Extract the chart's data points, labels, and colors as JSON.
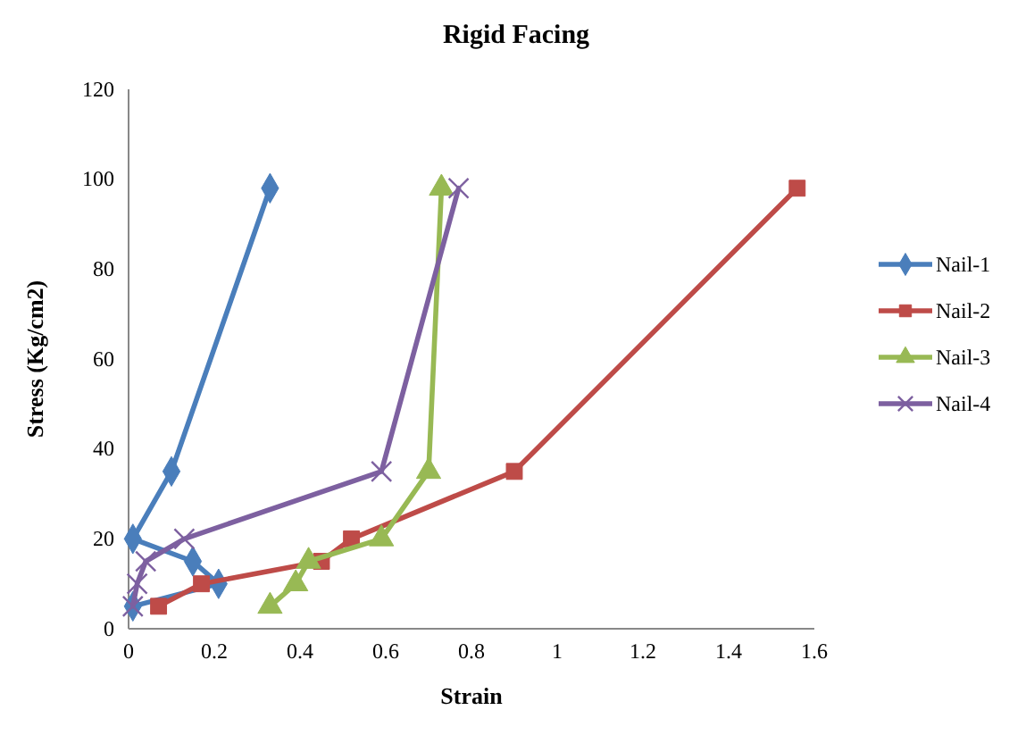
{
  "chart_data": {
    "type": "line",
    "title": "Rigid Facing",
    "xlabel": "Strain",
    "ylabel": "Stress (Kg/cm2)",
    "xlim": [
      0,
      1.6
    ],
    "xticks": [
      0,
      0.2,
      0.4,
      0.6,
      0.8,
      1,
      1.2,
      1.4,
      1.6
    ],
    "ylim": [
      0,
      120
    ],
    "yticks": [
      0,
      20,
      40,
      60,
      80,
      100,
      120
    ],
    "grid": false,
    "legend": "right",
    "series": [
      {
        "name": "Nail-1",
        "color": "#4a7ebb",
        "marker": "diamond",
        "x": [
          0.01,
          0.21,
          0.15,
          0.01,
          0.1,
          0.33
        ],
        "values": [
          5,
          10,
          15,
          20,
          35,
          98
        ]
      },
      {
        "name": "Nail-2",
        "color": "#be4b48",
        "marker": "square",
        "x": [
          0.07,
          0.17,
          0.45,
          0.52,
          0.9,
          1.56
        ],
        "values": [
          5,
          10,
          15,
          20,
          35,
          98
        ]
      },
      {
        "name": "Nail-3",
        "color": "#98b954",
        "marker": "triangle",
        "x": [
          0.33,
          0.39,
          0.42,
          0.59,
          0.7,
          0.73
        ],
        "values": [
          5,
          10,
          15,
          20,
          35,
          98
        ]
      },
      {
        "name": "Nail-4",
        "color": "#7d60a0",
        "marker": "cross",
        "x": [
          0.01,
          0.02,
          0.04,
          0.13,
          0.59,
          0.77
        ],
        "values": [
          5,
          10,
          15,
          20,
          35,
          98
        ]
      }
    ]
  }
}
